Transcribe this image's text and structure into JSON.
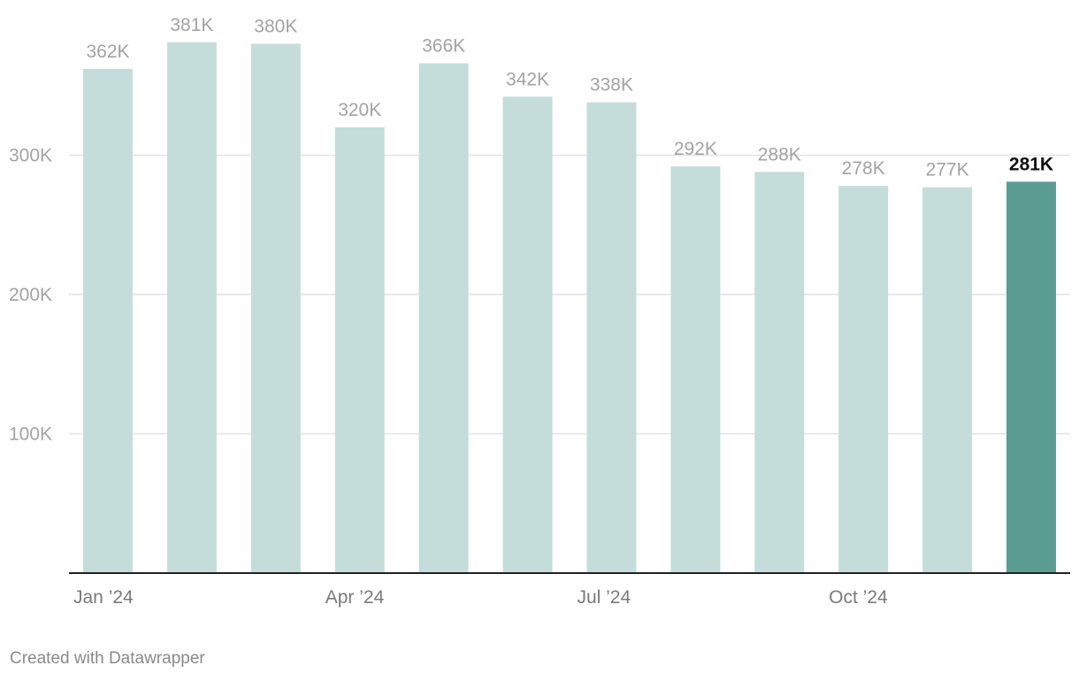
{
  "chart_data": {
    "type": "bar",
    "categories": [
      "Jan 2024",
      "Feb 2024",
      "Mar 2024",
      "Apr 2024",
      "May 2024",
      "Jun 2024",
      "Jul 2024",
      "Aug 2024",
      "Sep 2024",
      "Oct 2024",
      "Nov 2024",
      "Dec 2024"
    ],
    "values": [
      362000,
      381000,
      380000,
      320000,
      366000,
      342000,
      338000,
      292000,
      288000,
      278000,
      277000,
      281000
    ],
    "value_labels": [
      "362K",
      "381K",
      "380K",
      "320K",
      "366K",
      "342K",
      "338K",
      "292K",
      "288K",
      "278K",
      "277K",
      "281K"
    ],
    "highlight_index": 11,
    "ylim": [
      0,
      400000
    ],
    "yticks": [
      100000,
      200000,
      300000
    ],
    "ytick_labels": [
      "100K",
      "200K",
      "300K"
    ],
    "xtick_positions": [
      0,
      3,
      6,
      9
    ],
    "xtick_labels": [
      "Jan ’24",
      "Apr ’24",
      "Jul ’24",
      "Oct ’24"
    ],
    "grid": true,
    "colors": {
      "bar": "#c4ddda",
      "highlight": "#5a9c91",
      "grid": "#e2e2e2",
      "axis": "#222222"
    }
  },
  "footer": {
    "credit": "Created with Datawrapper"
  }
}
